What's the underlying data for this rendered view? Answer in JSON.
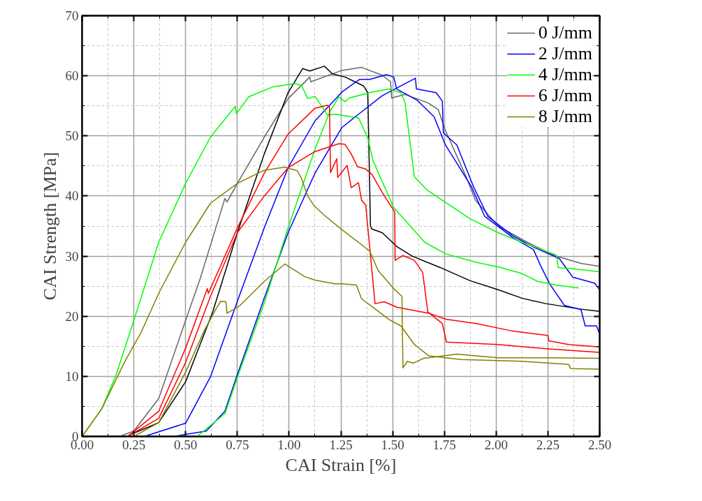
{
  "chart_data": {
    "type": "line",
    "xlabel": "CAI Strain [%]",
    "ylabel": "CAI Strength [MPa]",
    "xlim": [
      0,
      2.5
    ],
    "ylim": [
      0,
      70
    ],
    "xticks": [
      {
        "value": 0,
        "label": "0.00"
      },
      {
        "value": 0.125,
        "label": null
      },
      {
        "value": 0.25,
        "label": "0.25"
      },
      {
        "value": 0.375,
        "label": null
      },
      {
        "value": 0.5,
        "label": "0.50"
      },
      {
        "value": 0.625,
        "label": null
      },
      {
        "value": 0.75,
        "label": "0.75"
      },
      {
        "value": 0.875,
        "label": null
      },
      {
        "value": 1,
        "label": "1.00"
      },
      {
        "value": 1.125,
        "label": null
      },
      {
        "value": 1.25,
        "label": "1.25"
      },
      {
        "value": 1.375,
        "label": null
      },
      {
        "value": 1.5,
        "label": "1.50"
      },
      {
        "value": 1.625,
        "label": null
      },
      {
        "value": 1.75,
        "label": "1.75"
      },
      {
        "value": 1.875,
        "label": null
      },
      {
        "value": 2,
        "label": "2.00"
      },
      {
        "value": 2.125,
        "label": null
      },
      {
        "value": 2.25,
        "label": "2.25"
      },
      {
        "value": 2.375,
        "label": null
      },
      {
        "value": 2.5,
        "label": "2.50"
      }
    ],
    "yticks": [
      0,
      {
        "value": 5,
        "label": null
      },
      10,
      {
        "value": 15,
        "label": null
      },
      20,
      {
        "value": 25,
        "label": null
      },
      30,
      {
        "value": 35,
        "label": null
      },
      40,
      {
        "value": 45,
        "label": null
      },
      50,
      {
        "value": 55,
        "label": null
      },
      60,
      {
        "value": 65,
        "label": null
      },
      70
    ],
    "grid": true,
    "legend": "top right",
    "line_style": "solid",
    "series": [
      {
        "name": "0 J/mm",
        "color": "#666666",
        "x": [
          0,
          0.18,
          0.25,
          0.37,
          0.5,
          0.57,
          0.69,
          0.7,
          0.75,
          0.88,
          0.995,
          1.1,
          1.105,
          1.255,
          1.35,
          1.45,
          1.49,
          1.495,
          1.56,
          1.67,
          1.72,
          1.755,
          1.855,
          1.9,
          2.01,
          2.15,
          2.29,
          2.41,
          2.5
        ],
        "values": [
          0,
          0,
          0.9,
          6.3,
          19.3,
          26.2,
          39.6,
          39.0,
          42.1,
          49.8,
          56.2,
          59.8,
          59.0,
          60.9,
          61.4,
          60.1,
          59.0,
          56.3,
          56.9,
          55.5,
          54.4,
          50.9,
          43.2,
          39.3,
          35.0,
          32.3,
          30.0,
          28.8,
          28.3
        ]
      },
      {
        "color": "#000000",
        "x": [
          0,
          0.22,
          0.37,
          0.5,
          0.63,
          0.75,
          0.88,
          0.995,
          1.065,
          1.1,
          1.17,
          1.21,
          1.27,
          1.36,
          1.38,
          1.393,
          1.4,
          1.45,
          1.52,
          1.595,
          1.73,
          1.875,
          2.01,
          2.125,
          2.24,
          2.405,
          2.5
        ],
        "values": [
          0,
          0.1,
          2.3,
          9.1,
          20.6,
          33.9,
          47.0,
          57.2,
          61.2,
          60.8,
          61.6,
          60.3,
          59.8,
          58.3,
          57.2,
          35.0,
          34.5,
          33.9,
          31.6,
          30.0,
          28.1,
          25.9,
          24.4,
          23.0,
          22.1,
          21.2,
          20.8
        ]
      },
      {
        "name": "2 J/mm",
        "color": "#0000ff",
        "x": [
          0,
          0.3,
          0.5,
          0.62,
          0.75,
          0.88,
          0.995,
          1.125,
          1.255,
          1.34,
          1.39,
          1.47,
          1.505,
          1.52,
          1.62,
          1.7,
          1.755,
          1.88,
          1.945,
          2.08,
          2.18,
          2.215,
          2.26,
          2.33,
          2.41,
          2.43,
          2.485,
          2.5
        ],
        "values": [
          0,
          0,
          2.2,
          9.9,
          22.5,
          34.7,
          44.7,
          52.5,
          57.3,
          59.4,
          59.4,
          60.2,
          59.8,
          57.8,
          55.9,
          53.2,
          48.5,
          41.6,
          36.6,
          33.1,
          31.1,
          28.4,
          25.3,
          21.8,
          21.1,
          18.4,
          18.4,
          17.0
        ]
      },
      {
        "color": "#0000ff",
        "x": [
          0,
          0.44,
          0.6,
          0.69,
          0.75,
          0.88,
          0.995,
          1.125,
          1.255,
          1.335,
          1.45,
          1.61,
          1.615,
          1.71,
          1.74,
          1.745,
          1.81,
          1.89,
          1.96,
          2.08,
          2.18,
          2.305,
          2.37,
          2.475,
          2.5
        ],
        "values": [
          0,
          0,
          0.9,
          4.2,
          10.3,
          23.0,
          33.9,
          43.8,
          51.4,
          53.6,
          56.7,
          59.6,
          57.8,
          57.2,
          55.8,
          50.5,
          48.5,
          41.6,
          36.6,
          33.4,
          31.5,
          29.6,
          26.5,
          25.5,
          24.4
        ]
      },
      {
        "name": "4 J/mm",
        "color": "#00ff00",
        "x": [
          0,
          0.095,
          0.165,
          0.25,
          0.37,
          0.5,
          0.62,
          0.74,
          0.745,
          0.805,
          0.925,
          1.03,
          1.06,
          1.09,
          1.125,
          1.185,
          1.225,
          1.335,
          1.38,
          1.405,
          1.505,
          1.655,
          1.755,
          1.9,
          2.01,
          2.125,
          2.2,
          2.29,
          2.4
        ],
        "values": [
          0,
          4.6,
          10.3,
          19.3,
          32.3,
          42.1,
          49.8,
          54.9,
          53.7,
          56.5,
          58.2,
          58.7,
          58.4,
          56.2,
          56.6,
          53.5,
          53.6,
          53.0,
          49.7,
          45.9,
          38.1,
          32.3,
          30.4,
          29.0,
          28.2,
          27.1,
          25.8,
          25.2,
          24.7
        ]
      },
      {
        "color": "#00ff00",
        "x": [
          0,
          0.555,
          0.69,
          0.75,
          0.88,
          0.995,
          1.125,
          1.195,
          1.24,
          1.27,
          1.29,
          1.39,
          1.48,
          1.54,
          1.56,
          1.605,
          1.67,
          1.875,
          2.01,
          2.125,
          2.29,
          2.3,
          2.395,
          2.5
        ],
        "values": [
          0,
          0,
          3.8,
          9.8,
          22.2,
          34.7,
          47.8,
          53.9,
          56.5,
          55.7,
          56.3,
          57.2,
          57.8,
          57.2,
          55.5,
          43.2,
          40.9,
          36.2,
          33.9,
          32.3,
          30.2,
          28.1,
          27.8,
          27.4
        ]
      },
      {
        "name": "6 J/mm",
        "color": "#ff0000",
        "x": [
          0,
          0.22,
          0.37,
          0.5,
          0.605,
          0.61,
          0.75,
          0.88,
          0.995,
          1.125,
          1.185,
          1.195,
          1.2,
          1.23,
          1.235,
          1.28,
          1.3,
          1.335,
          1.35,
          1.37,
          1.415,
          1.46,
          1.52,
          1.675,
          1.757,
          1.9,
          2.07,
          2.25,
          2.255,
          2.35,
          2.5
        ],
        "values": [
          0,
          0,
          4.2,
          14.7,
          24.6,
          23.8,
          34.7,
          43.8,
          50.3,
          54.6,
          55.1,
          54.8,
          43.9,
          46.2,
          43.1,
          45.1,
          41.4,
          42.2,
          39.3,
          38.5,
          22.1,
          22.4,
          21.5,
          20.5,
          19.5,
          18.8,
          17.6,
          16.8,
          15.9,
          15.3,
          14.9
        ]
      },
      {
        "color": "#ff0000",
        "x": [
          0,
          0.22,
          0.37,
          0.5,
          0.62,
          0.75,
          0.88,
          0.995,
          1.125,
          1.24,
          1.27,
          1.3,
          1.33,
          1.37,
          1.4,
          1.46,
          1.51,
          1.512,
          1.55,
          1.605,
          1.645,
          1.67,
          1.74,
          1.76,
          2.01,
          2.24,
          2.5
        ],
        "values": [
          0,
          0,
          3.0,
          12.3,
          23.3,
          33.9,
          40.0,
          44.7,
          47.4,
          48.7,
          48.6,
          47.0,
          44.9,
          44.5,
          43.6,
          40.0,
          37.4,
          29.3,
          30.1,
          29.3,
          27.3,
          20.7,
          18.8,
          15.7,
          15.3,
          14.6,
          14.0
        ]
      },
      {
        "name": "8 J/mm",
        "color": "#808000",
        "x": [
          0,
          0.095,
          0.21,
          0.285,
          0.37,
          0.5,
          0.62,
          0.75,
          0.88,
          0.98,
          1.04,
          1.06,
          1.09,
          1.12,
          1.17,
          1.255,
          1.335,
          1.39,
          1.43,
          1.505,
          1.545,
          1.55,
          1.57,
          1.6,
          1.65,
          1.7,
          1.81,
          2.01,
          2.25,
          2.5
        ],
        "values": [
          0,
          4.6,
          12.7,
          17.3,
          23.8,
          32.3,
          38.8,
          42.1,
          44.3,
          44.8,
          44.2,
          42.9,
          40.0,
          38.4,
          36.8,
          34.4,
          32.3,
          30.8,
          27.6,
          24.6,
          23.3,
          11.4,
          12.5,
          12.2,
          13.0,
          13.2,
          13.7,
          13.1,
          13.1,
          13.0
        ]
      },
      {
        "color": "#808000",
        "x": [
          0,
          0.25,
          0.37,
          0.5,
          0.59,
          0.65,
          0.67,
          0.695,
          0.7,
          0.76,
          0.88,
          0.98,
          1.075,
          1.125,
          1.22,
          1.26,
          1.325,
          1.35,
          1.405,
          1.485,
          1.54,
          1.605,
          1.675,
          1.83,
          2.125,
          2.35,
          2.36,
          2.5
        ],
        "values": [
          0,
          0,
          2.3,
          10.7,
          17.6,
          21.4,
          22.5,
          22.4,
          20.5,
          21.7,
          25.8,
          28.7,
          26.6,
          26.0,
          25.4,
          25.4,
          25.2,
          22.9,
          21.5,
          19.4,
          18.4,
          15.3,
          13.4,
          12.8,
          12.5,
          12.0,
          11.3,
          11.2
        ]
      }
    ]
  }
}
